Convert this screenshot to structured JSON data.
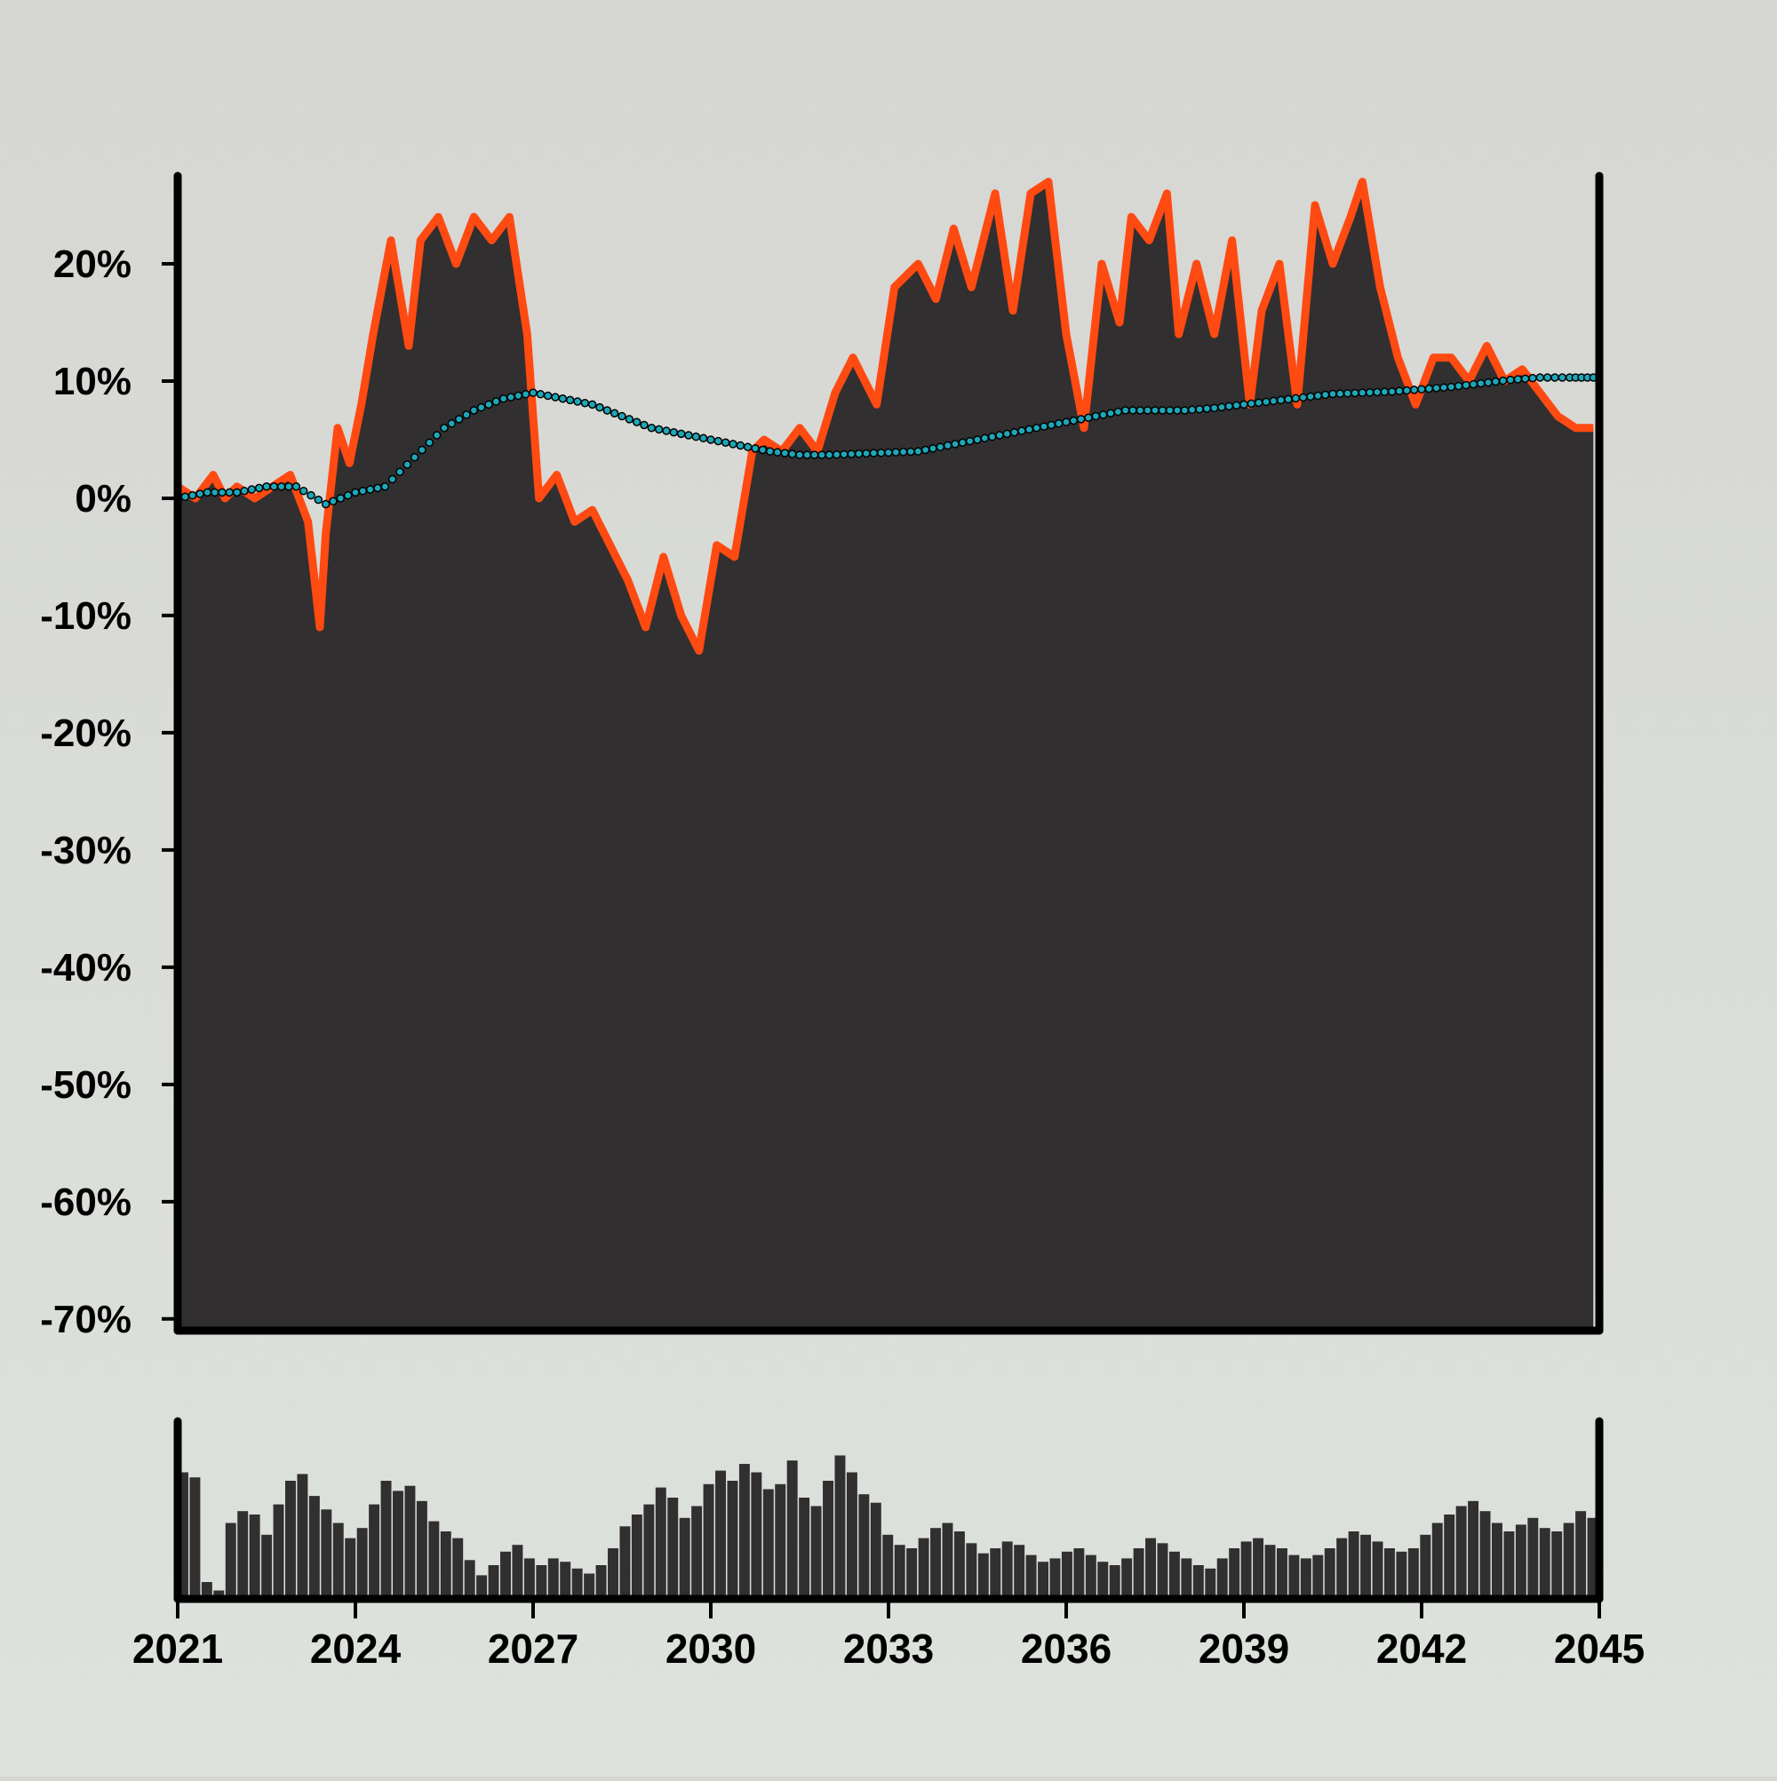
{
  "colors": {
    "area_fill": "#312f30",
    "line": "#ff4a12",
    "ma_dots": "#1ea7b8",
    "volume_bars": "#312f30",
    "axis": "#000000"
  },
  "chart_data": [
    {
      "type": "area",
      "title": "",
      "xlabel": "",
      "ylabel": "",
      "x_range": [
        2021,
        2045
      ],
      "ylim": [
        -71,
        27.5
      ],
      "y_ticks": [
        "20%",
        "10%",
        "0%",
        "-10%",
        "-20%",
        "-30%",
        "-40%",
        "-50%",
        "-60%",
        "-70%"
      ],
      "y_tick_values": [
        20,
        10,
        0,
        -10,
        -20,
        -30,
        -40,
        -50,
        -60,
        -70
      ],
      "series": [
        {
          "style": "area-with-line",
          "x": [
            2021.0,
            2021.3,
            2021.6,
            2021.8,
            2022.0,
            2022.3,
            2022.6,
            2022.9,
            2023.2,
            2023.4,
            2023.5,
            2023.7,
            2023.9,
            2024.1,
            2024.3,
            2024.6,
            2024.9,
            2025.1,
            2025.4,
            2025.7,
            2026.0,
            2026.3,
            2026.6,
            2026.9,
            2027.1,
            2027.4,
            2027.7,
            2028.0,
            2028.3,
            2028.6,
            2028.9,
            2029.2,
            2029.5,
            2029.8,
            2030.1,
            2030.4,
            2030.7,
            2030.9,
            2031.2,
            2031.5,
            2031.8,
            2032.1,
            2032.4,
            2032.8,
            2033.1,
            2033.5,
            2033.8,
            2034.1,
            2034.4,
            2034.8,
            2035.1,
            2035.4,
            2035.7,
            2036.0,
            2036.3,
            2036.6,
            2036.9,
            2037.1,
            2037.4,
            2037.7,
            2037.9,
            2038.2,
            2038.5,
            2038.8,
            2039.1,
            2039.3,
            2039.6,
            2039.9,
            2040.2,
            2040.5,
            2040.8,
            2041.0,
            2041.3,
            2041.6,
            2041.9,
            2042.2,
            2042.5,
            2042.8,
            2043.1,
            2043.4,
            2043.7,
            2044.0,
            2044.3,
            2044.6,
            2044.9
          ],
          "values": [
            1,
            0,
            2,
            0,
            1,
            0,
            1,
            2,
            -2,
            -11,
            -3,
            6,
            3,
            8,
            14,
            22,
            13,
            22,
            24,
            20,
            24,
            22,
            24,
            14,
            0,
            2,
            -2,
            -1,
            -4,
            -7,
            -11,
            -5,
            -10,
            -13,
            -4,
            -5,
            4,
            5,
            4,
            6,
            4,
            9,
            12,
            8,
            18,
            20,
            17,
            23,
            18,
            26,
            16,
            26,
            27,
            14,
            6,
            20,
            15,
            24,
            22,
            26,
            14,
            20,
            14,
            22,
            8,
            16,
            20,
            8,
            25,
            20,
            24,
            27,
            18,
            12,
            8,
            12,
            12,
            10,
            13,
            10,
            11,
            9,
            7,
            6,
            6
          ]
        },
        {
          "style": "dotted-line",
          "x": [
            2021.0,
            2021.5,
            2022.0,
            2022.5,
            2023.0,
            2023.5,
            2024.0,
            2024.5,
            2025.0,
            2025.5,
            2026.0,
            2026.5,
            2027.0,
            2027.5,
            2028.0,
            2028.5,
            2029.0,
            2029.5,
            2030.0,
            2030.5,
            2031.0,
            2031.5,
            2032.0,
            2032.5,
            2033.0,
            2033.5,
            2034.0,
            2034.5,
            2035.0,
            2035.5,
            2036.0,
            2036.5,
            2037.0,
            2037.5,
            2038.0,
            2038.5,
            2039.0,
            2039.5,
            2040.0,
            2040.5,
            2041.0,
            2041.5,
            2042.0,
            2042.5,
            2043.0,
            2043.5,
            2044.0,
            2044.5,
            2044.9
          ],
          "values": [
            0,
            0.5,
            0.5,
            1,
            1,
            -0.5,
            0.5,
            1,
            3.5,
            6,
            7.5,
            8.5,
            9,
            8.5,
            8,
            7,
            6,
            5.5,
            5,
            4.5,
            4,
            3.7,
            3.7,
            3.8,
            3.9,
            4,
            4.5,
            5,
            5.5,
            6,
            6.5,
            7,
            7.5,
            7.5,
            7.5,
            7.7,
            8,
            8.3,
            8.6,
            8.9,
            9,
            9.1,
            9.3,
            9.5,
            9.8,
            10.1,
            10.3,
            10.3,
            10.3
          ]
        }
      ]
    },
    {
      "type": "bar",
      "title": "",
      "xlabel": "",
      "ylabel": "",
      "x_range": [
        2021,
        2045
      ],
      "x_tick_labels": [
        "2021",
        "2024",
        "2027",
        "2030",
        "2033",
        "2036",
        "2039",
        "2042",
        "2045"
      ],
      "x_tick_values": [
        2021,
        2024,
        2027,
        2030,
        2033,
        2036,
        2039,
        2042,
        2045
      ],
      "ylim": [
        0,
        1
      ],
      "values": [
        0.75,
        0.72,
        0.1,
        0.05,
        0.45,
        0.52,
        0.5,
        0.38,
        0.56,
        0.7,
        0.74,
        0.61,
        0.53,
        0.45,
        0.36,
        0.42,
        0.56,
        0.7,
        0.64,
        0.67,
        0.58,
        0.46,
        0.4,
        0.36,
        0.23,
        0.14,
        0.2,
        0.28,
        0.32,
        0.24,
        0.2,
        0.24,
        0.22,
        0.18,
        0.15,
        0.2,
        0.3,
        0.43,
        0.5,
        0.56,
        0.66,
        0.6,
        0.48,
        0.55,
        0.68,
        0.76,
        0.7,
        0.8,
        0.75,
        0.65,
        0.68,
        0.82,
        0.6,
        0.55,
        0.7,
        0.85,
        0.75,
        0.62,
        0.57,
        0.38,
        0.32,
        0.3,
        0.36,
        0.42,
        0.45,
        0.4,
        0.33,
        0.27,
        0.3,
        0.34,
        0.32,
        0.26,
        0.22,
        0.24,
        0.28,
        0.3,
        0.26,
        0.22,
        0.2,
        0.24,
        0.3,
        0.36,
        0.33,
        0.28,
        0.24,
        0.2,
        0.18,
        0.24,
        0.3,
        0.34,
        0.36,
        0.32,
        0.3,
        0.26,
        0.24,
        0.26,
        0.3,
        0.36,
        0.4,
        0.38,
        0.34,
        0.3,
        0.28,
        0.3,
        0.38,
        0.45,
        0.5,
        0.55,
        0.58,
        0.52,
        0.45,
        0.4,
        0.44,
        0.48,
        0.42,
        0.4,
        0.45,
        0.52,
        0.48
      ]
    }
  ]
}
